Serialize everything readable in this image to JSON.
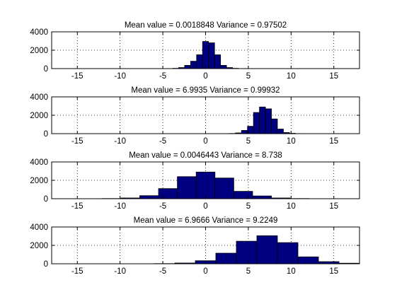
{
  "colors": {
    "bar_fill": "#000080",
    "bar_edge": "#000000",
    "grid": "#000000",
    "axis": "#000000",
    "background": "#ffffff"
  },
  "chart_data": [
    {
      "type": "bar",
      "title": "Mean value = 0.0018848    Variance = 0.97502",
      "xlim": [
        -18,
        18
      ],
      "ylim": [
        0,
        4000
      ],
      "xticks": [
        -15,
        -10,
        -5,
        0,
        5,
        10,
        15
      ],
      "xtick_labels": [
        "-15",
        "-10",
        "-5",
        "0",
        "5",
        "10",
        "15"
      ],
      "yticks": [
        0,
        2000,
        4000
      ],
      "ytick_labels": [
        "0",
        "2000",
        "4000"
      ],
      "grid": true,
      "bin_width": 0.7,
      "x": [
        -4.2,
        -3.5,
        -2.8,
        -2.1,
        -1.4,
        -0.7,
        0.0,
        0.7,
        1.4,
        2.1,
        2.8,
        3.5,
        4.2
      ],
      "values": [
        5,
        30,
        110,
        350,
        800,
        1500,
        2950,
        2800,
        1500,
        350,
        110,
        30,
        5
      ]
    },
    {
      "type": "bar",
      "title": "Mean value =  6.9935    Variance = 0.99932",
      "xlim": [
        -18,
        18
      ],
      "ylim": [
        0,
        4000
      ],
      "xticks": [
        -15,
        -10,
        -5,
        0,
        5,
        10,
        15
      ],
      "xtick_labels": [
        "-15",
        "-10",
        "-5",
        "0",
        "5",
        "10",
        "15"
      ],
      "yticks": [
        0,
        2000,
        4000
      ],
      "ytick_labels": [
        "0",
        "2000",
        "4000"
      ],
      "grid": true,
      "bin_width": 0.7,
      "x": [
        3.15,
        3.85,
        4.55,
        5.25,
        5.95,
        6.65,
        7.35,
        8.05,
        8.75,
        9.45,
        10.15,
        10.85
      ],
      "values": [
        20,
        80,
        350,
        800,
        2300,
        2900,
        2700,
        1600,
        500,
        120,
        40,
        10
      ]
    },
    {
      "type": "bar",
      "title": "Mean value = 0.0046443    Variance = 8.738",
      "xlim": [
        -18,
        18
      ],
      "ylim": [
        0,
        4000
      ],
      "xticks": [
        -15,
        -10,
        -5,
        0,
        5,
        10,
        15
      ],
      "xtick_labels": [
        "-15",
        "-10",
        "-5",
        "0",
        "5",
        "10",
        "15"
      ],
      "yticks": [
        0,
        2000,
        4000
      ],
      "ytick_labels": [
        "0",
        "2000",
        "4000"
      ],
      "grid": true,
      "bin_width": 2.2,
      "x": [
        -11,
        -8.8,
        -6.6,
        -4.4,
        -2.2,
        0.0,
        2.2,
        4.4,
        6.6,
        8.8,
        11
      ],
      "values": [
        20,
        80,
        330,
        1100,
        2400,
        2900,
        2250,
        800,
        300,
        80,
        20
      ]
    },
    {
      "type": "bar",
      "title": "Mean value = 6.9666    Variance = 9.2249",
      "xlim": [
        -18,
        18
      ],
      "ylim": [
        0,
        4000
      ],
      "xticks": [
        -15,
        -10,
        -5,
        0,
        5,
        10,
        15
      ],
      "xtick_labels": [
        "-15",
        "-10",
        "-5",
        "0",
        "5",
        "10",
        "15"
      ],
      "yticks": [
        0,
        2000,
        4000
      ],
      "ytick_labels": [
        "0",
        "2000",
        "4000"
      ],
      "grid": true,
      "bin_width": 2.4,
      "x": [
        -4.8,
        -2.4,
        0.0,
        2.4,
        4.8,
        7.2,
        9.6,
        12,
        14.4,
        16.8
      ],
      "values": [
        20,
        80,
        330,
        1150,
        2450,
        3050,
        2300,
        750,
        230,
        60
      ]
    }
  ]
}
